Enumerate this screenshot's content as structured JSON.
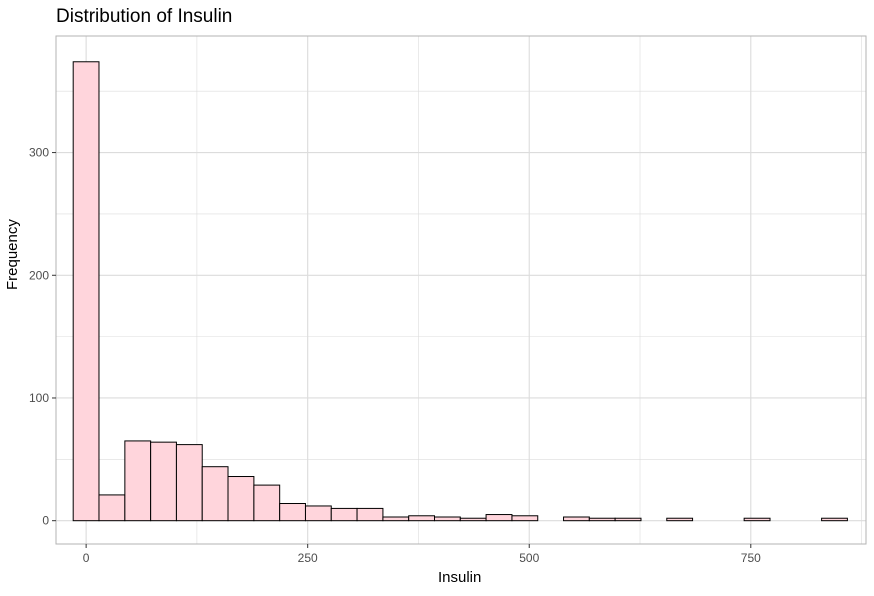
{
  "chart_data": {
    "type": "bar",
    "title": "Distribution of Insulin",
    "xlabel": "Insulin",
    "ylabel": "Frequency",
    "xlim": [
      -34,
      880
    ],
    "ylim": [
      -19,
      395
    ],
    "x_ticks": [
      0,
      250,
      500,
      750
    ],
    "y_ticks": [
      0,
      100,
      200,
      300
    ],
    "bin_width": 29.1,
    "bins": [
      {
        "x0": -14.6,
        "x1": 14.5,
        "count": 374
      },
      {
        "x0": 14.5,
        "x1": 43.7,
        "count": 21
      },
      {
        "x0": 43.7,
        "x1": 72.8,
        "count": 65
      },
      {
        "x0": 72.8,
        "x1": 101.9,
        "count": 64
      },
      {
        "x0": 101.9,
        "x1": 131.0,
        "count": 62
      },
      {
        "x0": 131.0,
        "x1": 160.1,
        "count": 44
      },
      {
        "x0": 160.1,
        "x1": 189.3,
        "count": 36
      },
      {
        "x0": 189.3,
        "x1": 218.4,
        "count": 29
      },
      {
        "x0": 218.4,
        "x1": 247.5,
        "count": 14
      },
      {
        "x0": 247.5,
        "x1": 276.6,
        "count": 12
      },
      {
        "x0": 276.6,
        "x1": 305.7,
        "count": 10
      },
      {
        "x0": 305.7,
        "x1": 334.9,
        "count": 10
      },
      {
        "x0": 334.9,
        "x1": 364.0,
        "count": 3
      },
      {
        "x0": 364.0,
        "x1": 393.1,
        "count": 4
      },
      {
        "x0": 393.1,
        "x1": 422.2,
        "count": 3
      },
      {
        "x0": 422.2,
        "x1": 451.3,
        "count": 2
      },
      {
        "x0": 451.3,
        "x1": 480.5,
        "count": 5
      },
      {
        "x0": 480.5,
        "x1": 509.6,
        "count": 4
      },
      {
        "x0": 509.6,
        "x1": 538.7,
        "count": 0
      },
      {
        "x0": 538.7,
        "x1": 567.8,
        "count": 3
      },
      {
        "x0": 567.8,
        "x1": 596.9,
        "count": 2
      },
      {
        "x0": 596.9,
        "x1": 626.1,
        "count": 2
      },
      {
        "x0": 626.1,
        "x1": 655.2,
        "count": 0
      },
      {
        "x0": 655.2,
        "x1": 684.3,
        "count": 2
      },
      {
        "x0": 684.3,
        "x1": 713.4,
        "count": 0
      },
      {
        "x0": 713.4,
        "x1": 742.5,
        "count": 0
      },
      {
        "x0": 742.5,
        "x1": 771.7,
        "count": 2
      },
      {
        "x0": 771.7,
        "x1": 800.8,
        "count": 0
      },
      {
        "x0": 800.8,
        "x1": 829.9,
        "count": 0
      },
      {
        "x0": 829.9,
        "x1": 859.0,
        "count": 2
      }
    ],
    "grid": true,
    "legend": "none",
    "colors": {
      "fill": "#ffd5dc",
      "outline": "#000000",
      "grid": "#dcdcdc",
      "panel_border": "#b3b3b3"
    }
  }
}
